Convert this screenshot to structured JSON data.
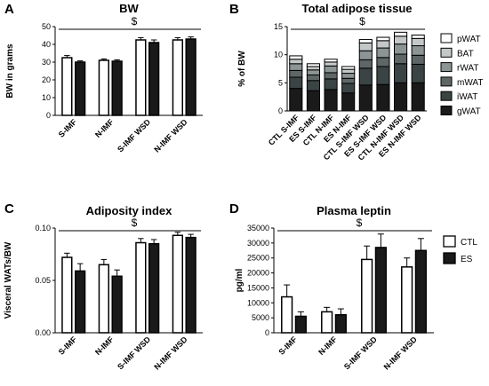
{
  "chart_data": [
    {
      "letter": "A",
      "type": "bar",
      "title": "BW",
      "ylabel": "BW in grams",
      "ylim": [
        0,
        50
      ],
      "yticks": [
        "0",
        "10",
        "20",
        "30",
        "40",
        "50"
      ],
      "categories": [
        "S-IMF",
        "N-IMF",
        "S-IMF WSD",
        "N-IMF WSD"
      ],
      "series": [
        {
          "values": [
            32.5,
            31.0,
            42.5,
            42.5
          ],
          "errors": [
            1.2,
            0.8,
            1.3,
            1.3
          ]
        },
        {
          "values": [
            30.0,
            30.5,
            41.0,
            43.0
          ],
          "errors": [
            0.7,
            0.8,
            1.5,
            1.2
          ]
        }
      ],
      "annotation": "$"
    },
    {
      "letter": "B",
      "type": "bar",
      "title": "Total adipose tissue",
      "ylabel": "% of BW",
      "ylim": [
        0,
        15
      ],
      "yticks": [
        "0",
        "5",
        "10",
        "15"
      ],
      "categories": [
        "CTL S-IMF",
        "ES S-IMF",
        "CTL N-IMF",
        "ES N-IMF",
        "CTL S-IMF WSD",
        "ES S-IMF WSD",
        "CTL N-IMF WSD",
        "ES N-IMF WSD"
      ],
      "stack_series": [
        {
          "name": "gWAT",
          "color": "#1a1a1a",
          "values": [
            4.0,
            3.6,
            3.8,
            3.2,
            4.6,
            4.7,
            5.0,
            5.0
          ]
        },
        {
          "name": "iWAT",
          "color": "#3a4444",
          "values": [
            2.0,
            1.8,
            1.9,
            1.7,
            3.0,
            3.2,
            3.4,
            3.3
          ]
        },
        {
          "name": "mWAT",
          "color": "#5e6666",
          "values": [
            1.2,
            1.0,
            1.1,
            0.9,
            1.5,
            1.6,
            1.7,
            1.6
          ]
        },
        {
          "name": "rWAT",
          "color": "#8c9494",
          "values": [
            1.2,
            0.9,
            1.2,
            0.9,
            1.6,
            1.7,
            1.8,
            1.7
          ]
        },
        {
          "name": "BAT",
          "color": "#c4c8c8",
          "values": [
            0.8,
            0.6,
            0.7,
            0.7,
            1.4,
            1.3,
            1.4,
            1.3
          ]
        },
        {
          "name": "pWAT",
          "color": "#ffffff",
          "values": [
            0.6,
            0.5,
            0.5,
            0.5,
            0.6,
            0.6,
            0.7,
            0.6
          ]
        }
      ],
      "annotation": "$"
    },
    {
      "letter": "C",
      "type": "bar",
      "title": "Adiposity index",
      "ylabel": "Visceral WATs/BW",
      "ylim": [
        0,
        0.1
      ],
      "yticks": [
        "0.00",
        "0.05",
        "0.10"
      ],
      "categories": [
        "S-IMF",
        "N-IMF",
        "S-IMF WSD",
        "N-IMF WSD"
      ],
      "series": [
        {
          "values": [
            0.072,
            0.065,
            0.086,
            0.093
          ],
          "errors": [
            0.004,
            0.005,
            0.004,
            0.003
          ]
        },
        {
          "values": [
            0.059,
            0.054,
            0.085,
            0.091
          ],
          "errors": [
            0.007,
            0.006,
            0.004,
            0.003
          ]
        }
      ],
      "annotation": "$"
    },
    {
      "letter": "D",
      "type": "bar",
      "title": "Plasma leptin",
      "ylabel": "pg/ml",
      "ylim": [
        0,
        35000
      ],
      "yticks": [
        "0",
        "5000",
        "10000",
        "15000",
        "20000",
        "25000",
        "30000",
        "35000"
      ],
      "categories": [
        "S-IMF",
        "N-IMF",
        "S-IMF WSD",
        "N-IMF WSD"
      ],
      "series": [
        {
          "name": "CTL",
          "values": [
            12000,
            7000,
            24500,
            22000
          ],
          "errors": [
            4000,
            1500,
            4500,
            3000
          ]
        },
        {
          "name": "ES",
          "values": [
            5500,
            6000,
            28500,
            27500
          ],
          "errors": [
            1500,
            2000,
            4500,
            4000
          ]
        }
      ],
      "annotation": "$"
    }
  ]
}
